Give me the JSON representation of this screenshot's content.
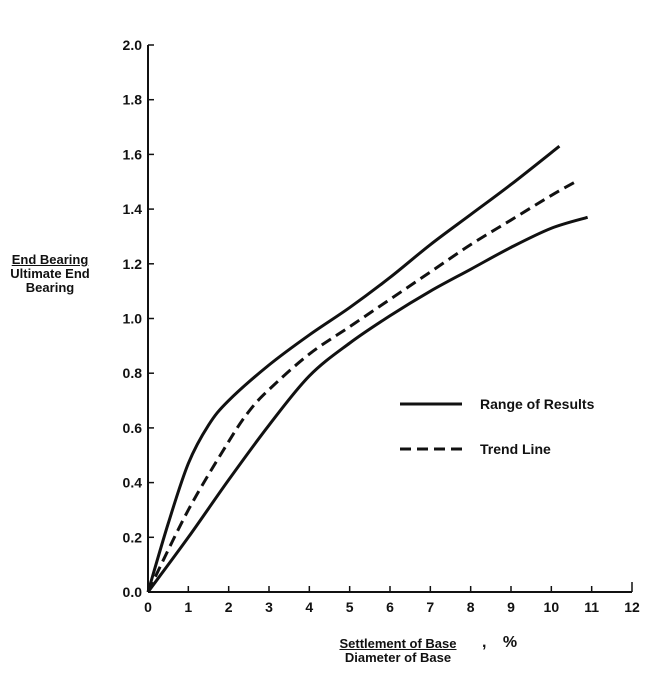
{
  "chart_data": {
    "type": "line",
    "xlabel": {
      "numerator": "Settlement of Base",
      "unit": ", %",
      "denominator": "Diameter of Base"
    },
    "ylabel": {
      "numerator": "End Bearing",
      "denominator": "Ultimate End Bearing"
    },
    "xlim": [
      0,
      12
    ],
    "ylim": [
      0,
      2.0
    ],
    "xticks": [
      "0",
      "1",
      "2",
      "3",
      "4",
      "5",
      "6",
      "7",
      "8",
      "9",
      "10",
      "11",
      "12"
    ],
    "yticks": [
      "0.0",
      "0.2",
      "0.4",
      "0.6",
      "0.8",
      "1.0",
      "1.2",
      "1.4",
      "1.6",
      "1.8",
      "2.0"
    ],
    "grid": false,
    "legend_position": "right-middle",
    "series": [
      {
        "name": "Range of Results",
        "style": "solid",
        "bound": "upper",
        "x": [
          0,
          0.5,
          1,
          1.5,
          2,
          3,
          4,
          5,
          6,
          7,
          8,
          9,
          10.2
        ],
        "y": [
          0,
          0.25,
          0.47,
          0.61,
          0.7,
          0.83,
          0.94,
          1.04,
          1.15,
          1.27,
          1.38,
          1.49,
          1.63
        ]
      },
      {
        "name": "Trend Line",
        "style": "dashed",
        "x": [
          0,
          1,
          2,
          2.5,
          3,
          4,
          5,
          6,
          7,
          8,
          9,
          10,
          10.6
        ],
        "y": [
          0,
          0.3,
          0.55,
          0.66,
          0.74,
          0.87,
          0.97,
          1.07,
          1.17,
          1.27,
          1.36,
          1.45,
          1.5
        ]
      },
      {
        "name": "Range of Results",
        "style": "solid",
        "bound": "lower",
        "x": [
          0,
          1,
          2,
          3,
          4,
          5,
          6,
          7,
          8,
          9,
          10,
          10.9
        ],
        "y": [
          0,
          0.2,
          0.41,
          0.61,
          0.79,
          0.91,
          1.01,
          1.1,
          1.18,
          1.26,
          1.33,
          1.37
        ]
      }
    ],
    "legend": [
      {
        "label": "Range of Results",
        "style": "solid"
      },
      {
        "label": "Trend Line",
        "style": "dashed"
      }
    ]
  }
}
